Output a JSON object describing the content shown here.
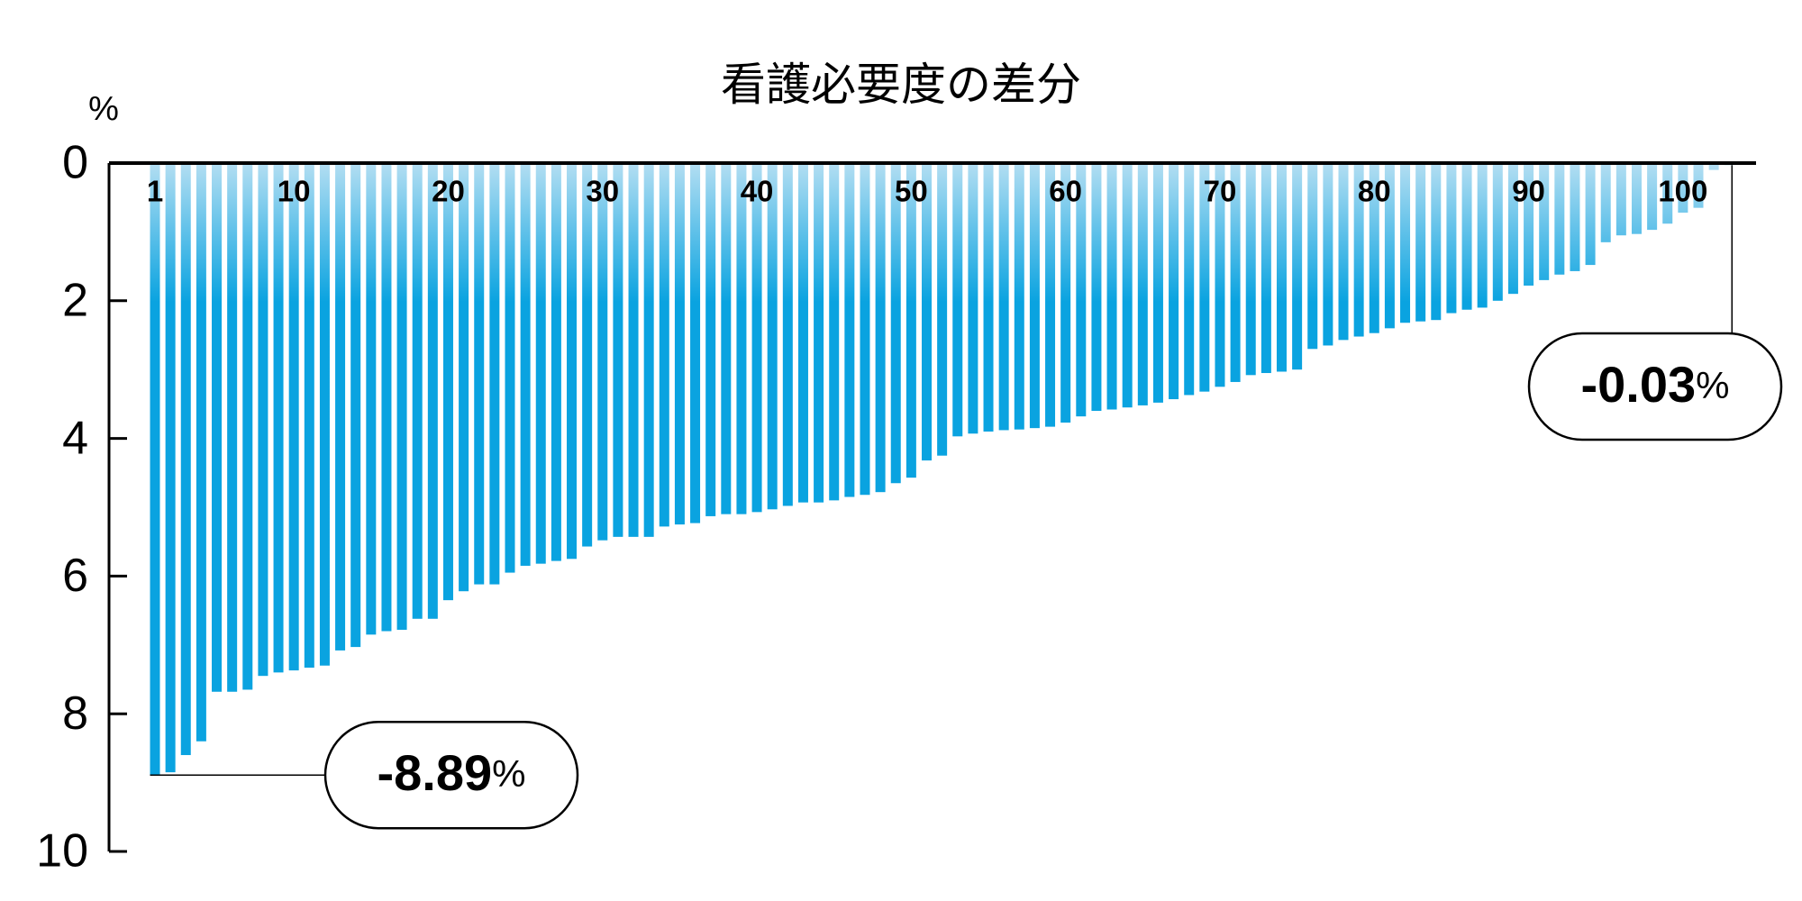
{
  "chart_data": {
    "type": "bar",
    "title": "看護必要度の差分",
    "y_unit": "%",
    "categories": [
      "1",
      null,
      null,
      null,
      null,
      null,
      null,
      null,
      null,
      "10",
      null,
      null,
      null,
      null,
      null,
      null,
      null,
      null,
      null,
      "20",
      null,
      null,
      null,
      null,
      null,
      null,
      null,
      null,
      null,
      "30",
      null,
      null,
      null,
      null,
      null,
      null,
      null,
      null,
      null,
      "40",
      null,
      null,
      null,
      null,
      null,
      null,
      null,
      null,
      null,
      "50",
      null,
      null,
      null,
      null,
      null,
      null,
      null,
      null,
      null,
      "60",
      null,
      null,
      null,
      null,
      null,
      null,
      null,
      null,
      null,
      "70",
      null,
      null,
      null,
      null,
      null,
      null,
      null,
      null,
      null,
      "80",
      null,
      null,
      null,
      null,
      null,
      null,
      null,
      null,
      null,
      "90",
      null,
      null,
      null,
      null,
      null,
      null,
      null,
      null,
      null,
      "100",
      null,
      null,
      null
    ],
    "values": [
      -8.89,
      -8.85,
      -8.6,
      -8.4,
      -7.68,
      -7.68,
      -7.65,
      -7.45,
      -7.4,
      -7.37,
      -7.33,
      -7.3,
      -7.08,
      -7.03,
      -6.85,
      -6.8,
      -6.78,
      -6.62,
      -6.62,
      -6.35,
      -6.22,
      -6.12,
      -6.12,
      -5.95,
      -5.85,
      -5.82,
      -5.78,
      -5.75,
      -5.57,
      -5.48,
      -5.43,
      -5.43,
      -5.43,
      -5.28,
      -5.25,
      -5.23,
      -5.13,
      -5.1,
      -5.1,
      -5.07,
      -5.03,
      -4.98,
      -4.93,
      -4.93,
      -4.9,
      -4.85,
      -4.82,
      -4.78,
      -4.65,
      -4.57,
      -4.32,
      -4.25,
      -3.97,
      -3.93,
      -3.9,
      -3.88,
      -3.87,
      -3.85,
      -3.83,
      -3.77,
      -3.68,
      -3.6,
      -3.58,
      -3.55,
      -3.52,
      -3.48,
      -3.43,
      -3.37,
      -3.32,
      -3.25,
      -3.18,
      -3.08,
      -3.05,
      -3.03,
      -3.0,
      -2.7,
      -2.65,
      -2.57,
      -2.52,
      -2.47,
      -2.4,
      -2.32,
      -2.3,
      -2.28,
      -2.18,
      -2.13,
      -2.1,
      -2.0,
      -1.9,
      -1.78,
      -1.7,
      -1.62,
      -1.57,
      -1.48,
      -1.15,
      -1.05,
      -1.03,
      -0.97,
      -0.88,
      -0.72,
      -0.65,
      -0.1,
      -0.03
    ],
    "color": "#0aa3e0",
    "ylim": [
      0,
      -10
    ],
    "yticks": [
      0,
      {
        "value": -2,
        "label": "2"
      },
      {
        "value": -4,
        "label": "4"
      },
      {
        "value": -6,
        "label": "6"
      },
      {
        "value": -8,
        "label": "8"
      },
      {
        "value": -10,
        "label": "10"
      }
    ]
  }
}
